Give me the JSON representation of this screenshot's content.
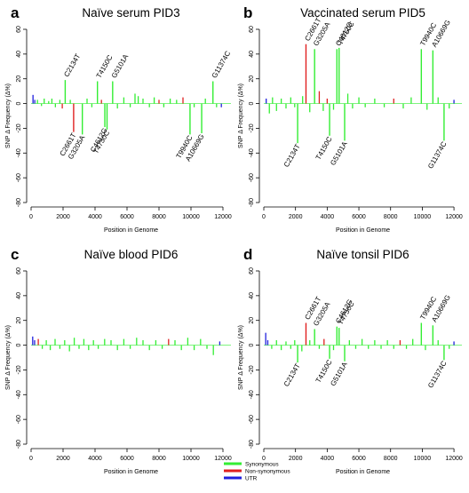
{
  "figure": {
    "colors": {
      "synonymous": "#33ee33",
      "nonsynonymous": "#e02020",
      "utr": "#2020dd",
      "axis": "#000000"
    },
    "legend": {
      "placement": "bottom-center",
      "items": [
        {
          "label": "Synonymous",
          "color": "#33ee33"
        },
        {
          "label": "Non-synonymous",
          "color": "#e02020"
        },
        {
          "label": "UTR",
          "color": "#2020dd"
        }
      ]
    }
  },
  "chart_data": [
    {
      "type": "bar",
      "panel_letter": "a",
      "title": "Naïve serum PID3",
      "xlabel": "Position in Genome",
      "ylabel": "SNP Δ Frequency (Δ%)",
      "xlim": [
        0,
        12500
      ],
      "ylim": [
        -80,
        60
      ],
      "xticks": [
        0,
        2000,
        4000,
        6000,
        8000,
        10000,
        12000
      ],
      "yticks": [
        -80,
        -60,
        -40,
        -20,
        0,
        20,
        40,
        60
      ],
      "grid": false,
      "labeled_snps": [
        {
          "label": "C2134T",
          "x": 2134,
          "y": 19,
          "class": "synonymous"
        },
        {
          "label": "C2661T",
          "x": 2661,
          "y": -23,
          "class": "nonsynonymous"
        },
        {
          "label": "G3205A",
          "x": 3205,
          "y": -25,
          "class": "synonymous"
        },
        {
          "label": "T4150C",
          "x": 4150,
          "y": 18,
          "class": "synonymous"
        },
        {
          "label": "C4612G",
          "x": 4612,
          "y": -19,
          "class": "synonymous"
        },
        {
          "label": "T4750C",
          "x": 4750,
          "y": -21,
          "class": "synonymous"
        },
        {
          "label": "G5101A",
          "x": 5101,
          "y": 18,
          "class": "synonymous"
        },
        {
          "label": "T9940C",
          "x": 9940,
          "y": -25,
          "class": "synonymous"
        },
        {
          "label": "A10669G",
          "x": 10669,
          "y": -24,
          "class": "synonymous"
        },
        {
          "label": "G11374C",
          "x": 11374,
          "y": 18,
          "class": "synonymous"
        }
      ],
      "other_snps": [
        {
          "x": 120,
          "y": 7,
          "class": "utr"
        },
        {
          "x": 230,
          "y": 3,
          "class": "utr"
        },
        {
          "x": 400,
          "y": 3,
          "class": "synonymous"
        },
        {
          "x": 650,
          "y": -2,
          "class": "synonymous"
        },
        {
          "x": 820,
          "y": 4,
          "class": "synonymous"
        },
        {
          "x": 1100,
          "y": 2,
          "class": "synonymous"
        },
        {
          "x": 1300,
          "y": 4,
          "class": "synonymous"
        },
        {
          "x": 1520,
          "y": -3,
          "class": "synonymous"
        },
        {
          "x": 1800,
          "y": 3,
          "class": "synonymous"
        },
        {
          "x": 1950,
          "y": -4,
          "class": "nonsynonymous"
        },
        {
          "x": 2450,
          "y": 3,
          "class": "synonymous"
        },
        {
          "x": 3500,
          "y": 4,
          "class": "synonymous"
        },
        {
          "x": 3800,
          "y": -3,
          "class": "synonymous"
        },
        {
          "x": 4400,
          "y": 3,
          "class": "nonsynonymous"
        },
        {
          "x": 5400,
          "y": -4,
          "class": "synonymous"
        },
        {
          "x": 5800,
          "y": 5,
          "class": "synonymous"
        },
        {
          "x": 6200,
          "y": -3,
          "class": "synonymous"
        },
        {
          "x": 6500,
          "y": 8,
          "class": "synonymous"
        },
        {
          "x": 6700,
          "y": 6,
          "class": "synonymous"
        },
        {
          "x": 7000,
          "y": 4,
          "class": "synonymous"
        },
        {
          "x": 7400,
          "y": -3,
          "class": "synonymous"
        },
        {
          "x": 7700,
          "y": 5,
          "class": "synonymous"
        },
        {
          "x": 8000,
          "y": 3,
          "class": "nonsynonymous"
        },
        {
          "x": 8300,
          "y": -3,
          "class": "synonymous"
        },
        {
          "x": 8700,
          "y": 4,
          "class": "synonymous"
        },
        {
          "x": 9100,
          "y": 3,
          "class": "synonymous"
        },
        {
          "x": 9500,
          "y": 5,
          "class": "nonsynonymous"
        },
        {
          "x": 10200,
          "y": -3,
          "class": "synonymous"
        },
        {
          "x": 10900,
          "y": 4,
          "class": "synonymous"
        },
        {
          "x": 11600,
          "y": -3,
          "class": "synonymous"
        },
        {
          "x": 11900,
          "y": -3,
          "class": "utr"
        }
      ]
    },
    {
      "type": "bar",
      "panel_letter": "b",
      "title": "Vaccinated serum PID5",
      "xlabel": "Position in Genome",
      "ylabel": "SNP Δ Frequency (Δ%)",
      "xlim": [
        0,
        12500
      ],
      "ylim": [
        -80,
        60
      ],
      "xticks": [
        0,
        2000,
        4000,
        6000,
        8000,
        10000,
        12000
      ],
      "yticks": [
        -80,
        -60,
        -40,
        -20,
        0,
        20,
        40,
        60
      ],
      "grid": false,
      "labeled_snps": [
        {
          "label": "C2134T",
          "x": 2134,
          "y": -32,
          "class": "synonymous"
        },
        {
          "label": "C2661T",
          "x": 2661,
          "y": 48,
          "class": "nonsynonymous"
        },
        {
          "label": "G3205A",
          "x": 3205,
          "y": 44,
          "class": "synonymous"
        },
        {
          "label": "T4150C",
          "x": 4150,
          "y": -26,
          "class": "synonymous"
        },
        {
          "label": "C4612G",
          "x": 4612,
          "y": 44,
          "class": "synonymous"
        },
        {
          "label": "T4750C",
          "x": 4750,
          "y": 45,
          "class": "synonymous"
        },
        {
          "label": "G5101A",
          "x": 5101,
          "y": -30,
          "class": "synonymous"
        },
        {
          "label": "T9940C",
          "x": 9940,
          "y": 44,
          "class": "synonymous"
        },
        {
          "label": "A10669G",
          "x": 10669,
          "y": 43,
          "class": "synonymous"
        },
        {
          "label": "G11374C",
          "x": 11374,
          "y": -30,
          "class": "synonymous"
        }
      ],
      "other_snps": [
        {
          "x": 150,
          "y": 4,
          "class": "utr"
        },
        {
          "x": 350,
          "y": -8,
          "class": "synonymous"
        },
        {
          "x": 550,
          "y": 5,
          "class": "synonymous"
        },
        {
          "x": 800,
          "y": -6,
          "class": "synonymous"
        },
        {
          "x": 1100,
          "y": 4,
          "class": "synonymous"
        },
        {
          "x": 1400,
          "y": -4,
          "class": "synonymous"
        },
        {
          "x": 1700,
          "y": 5,
          "class": "synonymous"
        },
        {
          "x": 1950,
          "y": -3,
          "class": "synonymous"
        },
        {
          "x": 2450,
          "y": 6,
          "class": "synonymous"
        },
        {
          "x": 2900,
          "y": -7,
          "class": "synonymous"
        },
        {
          "x": 3500,
          "y": 10,
          "class": "nonsynonymous"
        },
        {
          "x": 3750,
          "y": -6,
          "class": "synonymous"
        },
        {
          "x": 4000,
          "y": 4,
          "class": "nonsynonymous"
        },
        {
          "x": 4400,
          "y": -5,
          "class": "synonymous"
        },
        {
          "x": 5300,
          "y": 8,
          "class": "synonymous"
        },
        {
          "x": 5600,
          "y": -4,
          "class": "synonymous"
        },
        {
          "x": 6000,
          "y": 5,
          "class": "synonymous"
        },
        {
          "x": 6400,
          "y": -3,
          "class": "synonymous"
        },
        {
          "x": 7000,
          "y": 4,
          "class": "synonymous"
        },
        {
          "x": 7600,
          "y": -3,
          "class": "synonymous"
        },
        {
          "x": 8200,
          "y": 4,
          "class": "nonsynonymous"
        },
        {
          "x": 8800,
          "y": -4,
          "class": "synonymous"
        },
        {
          "x": 9300,
          "y": 5,
          "class": "synonymous"
        },
        {
          "x": 10300,
          "y": -5,
          "class": "synonymous"
        },
        {
          "x": 11000,
          "y": 5,
          "class": "synonymous"
        },
        {
          "x": 11700,
          "y": -4,
          "class": "synonymous"
        },
        {
          "x": 12000,
          "y": 3,
          "class": "utr"
        }
      ]
    },
    {
      "type": "bar",
      "panel_letter": "c",
      "title": "Naïve blood PID6",
      "xlabel": "Position in Genome",
      "ylabel": "SNP Δ Frequency (Δ%)",
      "xlim": [
        0,
        12500
      ],
      "ylim": [
        -80,
        60
      ],
      "xticks": [
        0,
        2000,
        4000,
        6000,
        8000,
        10000,
        12000
      ],
      "yticks": [
        -80,
        -60,
        -40,
        -20,
        0,
        20,
        40,
        60
      ],
      "grid": false,
      "labeled_snps": [],
      "other_snps": [
        {
          "x": 100,
          "y": 7,
          "class": "utr"
        },
        {
          "x": 220,
          "y": 4,
          "class": "utr"
        },
        {
          "x": 450,
          "y": 5,
          "class": "nonsynonymous"
        },
        {
          "x": 700,
          "y": -3,
          "class": "synonymous"
        },
        {
          "x": 950,
          "y": 4,
          "class": "synonymous"
        },
        {
          "x": 1200,
          "y": -4,
          "class": "synonymous"
        },
        {
          "x": 1500,
          "y": 5,
          "class": "synonymous"
        },
        {
          "x": 1800,
          "y": -3,
          "class": "synonymous"
        },
        {
          "x": 2100,
          "y": 4,
          "class": "synonymous"
        },
        {
          "x": 2400,
          "y": -5,
          "class": "synonymous"
        },
        {
          "x": 2700,
          "y": 6,
          "class": "synonymous"
        },
        {
          "x": 3000,
          "y": -3,
          "class": "synonymous"
        },
        {
          "x": 3300,
          "y": 5,
          "class": "synonymous"
        },
        {
          "x": 3600,
          "y": -4,
          "class": "synonymous"
        },
        {
          "x": 3900,
          "y": 4,
          "class": "synonymous"
        },
        {
          "x": 4200,
          "y": -3,
          "class": "synonymous"
        },
        {
          "x": 4600,
          "y": 5,
          "class": "synonymous"
        },
        {
          "x": 5000,
          "y": 4,
          "class": "synonymous"
        },
        {
          "x": 5400,
          "y": -4,
          "class": "synonymous"
        },
        {
          "x": 5800,
          "y": 5,
          "class": "synonymous"
        },
        {
          "x": 6200,
          "y": -3,
          "class": "synonymous"
        },
        {
          "x": 6600,
          "y": 6,
          "class": "synonymous"
        },
        {
          "x": 7000,
          "y": 4,
          "class": "synonymous"
        },
        {
          "x": 7400,
          "y": -4,
          "class": "synonymous"
        },
        {
          "x": 7800,
          "y": 4,
          "class": "synonymous"
        },
        {
          "x": 8200,
          "y": -3,
          "class": "synonymous"
        },
        {
          "x": 8600,
          "y": 5,
          "class": "nonsynonymous"
        },
        {
          "x": 9000,
          "y": 4,
          "class": "synonymous"
        },
        {
          "x": 9400,
          "y": -4,
          "class": "synonymous"
        },
        {
          "x": 9800,
          "y": 6,
          "class": "synonymous"
        },
        {
          "x": 10200,
          "y": -4,
          "class": "synonymous"
        },
        {
          "x": 10600,
          "y": 5,
          "class": "synonymous"
        },
        {
          "x": 11000,
          "y": -3,
          "class": "synonymous"
        },
        {
          "x": 11400,
          "y": -8,
          "class": "synonymous"
        },
        {
          "x": 11800,
          "y": 3,
          "class": "utr"
        }
      ]
    },
    {
      "type": "bar",
      "panel_letter": "d",
      "title": "Naïve tonsil PID6",
      "xlabel": "Position in Genome",
      "ylabel": "SNP Δ Frequency (Δ%)",
      "xlim": [
        0,
        12500
      ],
      "ylim": [
        -80,
        60
      ],
      "xticks": [
        0,
        2000,
        4000,
        6000,
        8000,
        10000,
        12000
      ],
      "yticks": [
        -80,
        -60,
        -40,
        -20,
        0,
        20,
        40,
        60
      ],
      "grid": false,
      "labeled_snps": [
        {
          "label": "C2134T",
          "x": 2134,
          "y": -14,
          "class": "synonymous"
        },
        {
          "label": "C2661T",
          "x": 2661,
          "y": 18,
          "class": "nonsynonymous"
        },
        {
          "label": "G3205A",
          "x": 3205,
          "y": 13,
          "class": "synonymous"
        },
        {
          "label": "T4150C",
          "x": 4150,
          "y": -11,
          "class": "synonymous"
        },
        {
          "label": "C4612G",
          "x": 4612,
          "y": 15,
          "class": "synonymous"
        },
        {
          "label": "T4750C",
          "x": 4750,
          "y": 14,
          "class": "synonymous"
        },
        {
          "label": "G5101A",
          "x": 5101,
          "y": -13,
          "class": "synonymous"
        },
        {
          "label": "T9940C",
          "x": 9940,
          "y": 18,
          "class": "synonymous"
        },
        {
          "label": "A10669G",
          "x": 10669,
          "y": 16,
          "class": "synonymous"
        },
        {
          "label": "G11374C",
          "x": 11374,
          "y": -12,
          "class": "synonymous"
        }
      ],
      "other_snps": [
        {
          "x": 120,
          "y": 10,
          "class": "utr"
        },
        {
          "x": 250,
          "y": 4,
          "class": "utr"
        },
        {
          "x": 500,
          "y": -3,
          "class": "synonymous"
        },
        {
          "x": 800,
          "y": 4,
          "class": "synonymous"
        },
        {
          "x": 1100,
          "y": -4,
          "class": "synonymous"
        },
        {
          "x": 1400,
          "y": 3,
          "class": "synonymous"
        },
        {
          "x": 1700,
          "y": -3,
          "class": "synonymous"
        },
        {
          "x": 1950,
          "y": 4,
          "class": "synonymous"
        },
        {
          "x": 2400,
          "y": -5,
          "class": "synonymous"
        },
        {
          "x": 2900,
          "y": 4,
          "class": "synonymous"
        },
        {
          "x": 3500,
          "y": -3,
          "class": "synonymous"
        },
        {
          "x": 3800,
          "y": 5,
          "class": "nonsynonymous"
        },
        {
          "x": 4400,
          "y": -4,
          "class": "synonymous"
        },
        {
          "x": 5400,
          "y": 4,
          "class": "synonymous"
        },
        {
          "x": 5800,
          "y": -3,
          "class": "synonymous"
        },
        {
          "x": 6200,
          "y": 5,
          "class": "synonymous"
        },
        {
          "x": 6600,
          "y": -3,
          "class": "synonymous"
        },
        {
          "x": 7000,
          "y": 4,
          "class": "synonymous"
        },
        {
          "x": 7400,
          "y": -3,
          "class": "synonymous"
        },
        {
          "x": 7800,
          "y": 4,
          "class": "synonymous"
        },
        {
          "x": 8200,
          "y": -3,
          "class": "synonymous"
        },
        {
          "x": 8600,
          "y": 4,
          "class": "nonsynonymous"
        },
        {
          "x": 9000,
          "y": -3,
          "class": "synonymous"
        },
        {
          "x": 9400,
          "y": 5,
          "class": "synonymous"
        },
        {
          "x": 10200,
          "y": -4,
          "class": "synonymous"
        },
        {
          "x": 11000,
          "y": 4,
          "class": "synonymous"
        },
        {
          "x": 11700,
          "y": -3,
          "class": "synonymous"
        },
        {
          "x": 12000,
          "y": 3,
          "class": "utr"
        }
      ]
    }
  ]
}
